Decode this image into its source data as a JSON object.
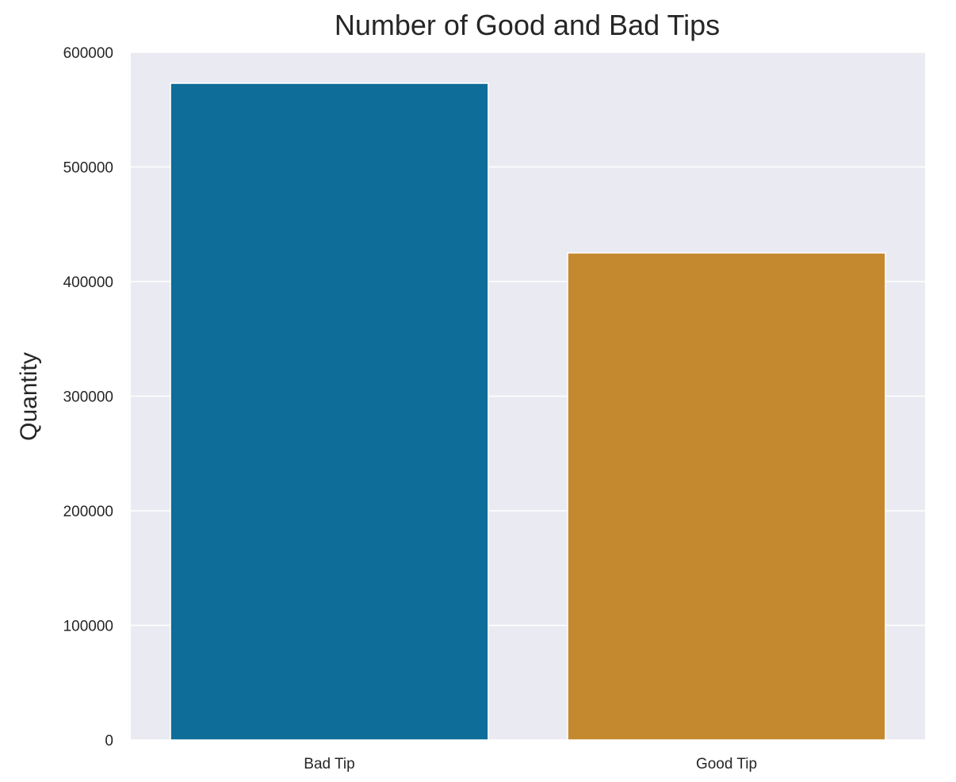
{
  "chart_data": {
    "type": "bar",
    "title": "Number of Good and Bad Tips",
    "xlabel": "",
    "ylabel": "Quantity",
    "categories": [
      "Bad Tip",
      "Good Tip"
    ],
    "values": [
      573000,
      425000
    ],
    "colors": [
      "#0e6d99",
      "#c4892f"
    ],
    "ylim": [
      0,
      600000
    ],
    "yticks": [
      0,
      100000,
      200000,
      300000,
      400000,
      500000,
      600000
    ],
    "ytick_labels": [
      "0",
      "100000",
      "200000",
      "300000",
      "400000",
      "500000",
      "600000"
    ],
    "grid": "horizontal",
    "background": "#eaeaf2",
    "legend": "none"
  }
}
